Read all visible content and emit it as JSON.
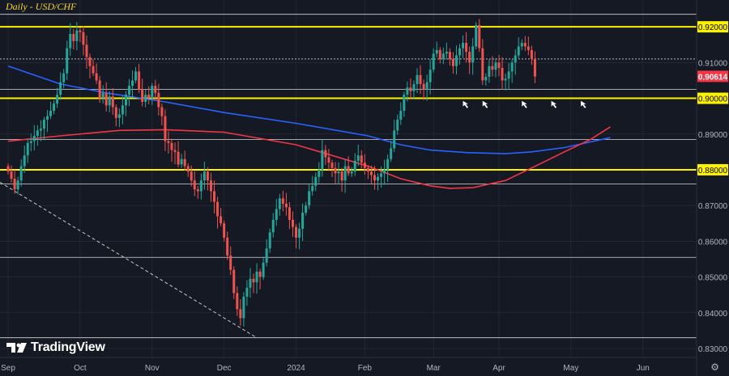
{
  "title": "Daily - USD/CHF",
  "logo_text": "TradingView",
  "settings_icon": "gear-icon",
  "colors": {
    "background": "#151924",
    "grid": "#2a2e39",
    "up": "#26a69a",
    "down": "#ef5350",
    "ma_blue": "#2962ff",
    "ma_red": "#f23645",
    "level": "#fff200",
    "price_tag": "#f23645"
  },
  "chart_data": {
    "type": "candlestick",
    "title": "Daily - USD/CHF",
    "ylim": [
      0.8275,
      0.9275
    ],
    "y_ticks": [
      0.83,
      0.84,
      0.85,
      0.86,
      0.87,
      0.88,
      0.89,
      0.9,
      0.91,
      0.92
    ],
    "y_tick_labels": [
      "0.83000",
      "0.84000",
      "0.85000",
      "0.86000",
      "0.87000",
      "0.88000",
      "0.89000",
      "0.90000",
      "0.91000",
      "0.92000"
    ],
    "x_labels": [
      "Sep",
      "Oct",
      "Nov",
      "Dec",
      "2024",
      "Feb",
      "Mar",
      "Apr",
      "May",
      "Jun"
    ],
    "x_label_index": [
      0,
      22,
      44,
      66,
      88,
      109,
      130,
      150,
      172,
      194
    ],
    "last_price": 0.90614,
    "last_price_label": "0.90614",
    "highlight_levels": [
      0.92,
      0.9,
      0.88
    ],
    "reference_levels": [
      0.9235,
      0.911,
      0.9025,
      0.8885,
      0.876,
      0.8555,
      0.833
    ],
    "close": [
      0.8795,
      0.8775,
      0.8745,
      0.877,
      0.881,
      0.884,
      0.8875,
      0.888,
      0.8895,
      0.891,
      0.8915,
      0.894,
      0.895,
      0.8965,
      0.8985,
      0.901,
      0.9045,
      0.907,
      0.914,
      0.918,
      0.916,
      0.919,
      0.9185,
      0.915,
      0.9115,
      0.909,
      0.907,
      0.905,
      0.9,
      0.9015,
      0.898,
      0.9005,
      0.8975,
      0.8945,
      0.8955,
      0.898,
      0.901,
      0.9035,
      0.905,
      0.9075,
      0.9025,
      0.899,
      0.901,
      0.9,
      0.9035,
      0.9015,
      0.8975,
      0.895,
      0.888,
      0.8875,
      0.8855,
      0.885,
      0.8815,
      0.883,
      0.881,
      0.8795,
      0.877,
      0.8745,
      0.874,
      0.877,
      0.8795,
      0.877,
      0.874,
      0.871,
      0.867,
      0.865,
      0.861,
      0.856,
      0.852,
      0.8455,
      0.841,
      0.8385,
      0.8445,
      0.847,
      0.8495,
      0.8485,
      0.8515,
      0.85,
      0.854,
      0.858,
      0.8625,
      0.866,
      0.869,
      0.872,
      0.8705,
      0.8695,
      0.866,
      0.864,
      0.861,
      0.8635,
      0.868,
      0.87,
      0.874,
      0.8755,
      0.878,
      0.88,
      0.8855,
      0.8835,
      0.882,
      0.8805,
      0.879,
      0.8795,
      0.877,
      0.881,
      0.879,
      0.8795,
      0.8825,
      0.884,
      0.882,
      0.8805,
      0.8795,
      0.8785,
      0.877,
      0.878,
      0.879,
      0.88,
      0.883,
      0.886,
      0.891,
      0.894,
      0.8965,
      0.901,
      0.903,
      0.902,
      0.904,
      0.9065,
      0.904,
      0.9025,
      0.9045,
      0.908,
      0.9125,
      0.9135,
      0.911,
      0.9125,
      0.913,
      0.911,
      0.909,
      0.912,
      0.914,
      0.9155,
      0.913,
      0.91,
      0.9145,
      0.9205,
      0.914,
      0.905,
      0.906,
      0.909,
      0.908,
      0.91,
      0.9085,
      0.905,
      0.9055,
      0.9075,
      0.91,
      0.912,
      0.9145,
      0.9155,
      0.9145,
      0.9135,
      0.911,
      0.9061
    ],
    "series": [
      {
        "name": "Moving average (blue)",
        "x": [
          0,
          16,
          30,
          48,
          66,
          88,
          110,
          120,
          129,
          140,
          152,
          160,
          170,
          175,
          180,
          184
        ],
        "values": [
          0.909,
          0.904,
          0.9015,
          0.899,
          0.896,
          0.893,
          0.8895,
          0.887,
          0.8855,
          0.8848,
          0.8845,
          0.885,
          0.8862,
          0.8872,
          0.8882,
          0.889
        ]
      },
      {
        "name": "Moving average (red)",
        "x": [
          0,
          16,
          34,
          48,
          66,
          88,
          110,
          120,
          129,
          135,
          142,
          152,
          160,
          170,
          178,
          184
        ],
        "values": [
          0.888,
          0.8895,
          0.891,
          0.8912,
          0.8905,
          0.887,
          0.881,
          0.8775,
          0.8755,
          0.8748,
          0.875,
          0.877,
          0.8805,
          0.885,
          0.8885,
          0.892
        ]
      }
    ],
    "annotations": [
      {
        "type": "arrow",
        "x_index": 139,
        "y": 0.8995
      },
      {
        "type": "arrow",
        "x_index": 145,
        "y": 0.8995
      },
      {
        "type": "arrow",
        "x_index": 157,
        "y": 0.8995
      },
      {
        "type": "arrow",
        "x_index": 166,
        "y": 0.8995
      },
      {
        "type": "arrow",
        "x_index": 175,
        "y": 0.8995
      },
      {
        "type": "dashed-trendline",
        "from": {
          "x_index": 0,
          "y": 0.8765
        },
        "to": {
          "x_index": 76,
          "y": 0.833
        }
      }
    ]
  }
}
